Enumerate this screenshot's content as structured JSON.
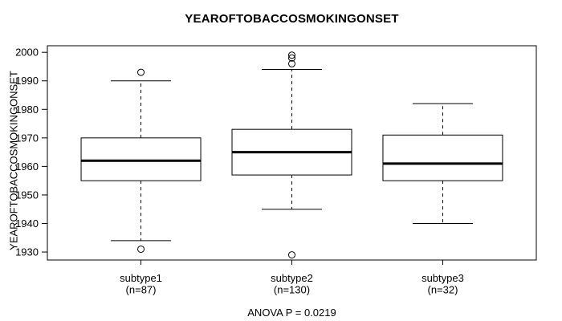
{
  "chart_data": {
    "type": "boxplot",
    "title": "YEAROFTOBACCOSMOKINGONSET",
    "ylabel": "YEAROFTOBACCOSMOKINGONSET",
    "annotation": "ANOVA P = 0.0219",
    "ylim": [
      1927.2,
      2002.3
    ],
    "yticks": [
      1930,
      1940,
      1950,
      1960,
      1970,
      1980,
      1990,
      2000
    ],
    "grid": false,
    "legend": "none",
    "colors": {
      "line": "#000000",
      "box_fill": "#ffffff",
      "background": "#ffffff"
    },
    "groups": [
      {
        "label": "subtype1",
        "n_label": "(n=87)",
        "n": 87,
        "whisker_low": 1934,
        "q1": 1955,
        "median": 1962,
        "q3": 1970,
        "whisker_high": 1990,
        "outliers": [
          1993,
          1931
        ]
      },
      {
        "label": "subtype2",
        "n_label": "(n=130)",
        "n": 130,
        "whisker_low": 1945,
        "q1": 1957,
        "median": 1965,
        "q3": 1973,
        "whisker_high": 1994,
        "outliers": [
          1999,
          1998,
          1996,
          1929
        ]
      },
      {
        "label": "subtype3",
        "n_label": "(n=32)",
        "n": 32,
        "whisker_low": 1940,
        "q1": 1955,
        "median": 1961,
        "q3": 1971,
        "whisker_high": 1982,
        "outliers": []
      }
    ]
  }
}
